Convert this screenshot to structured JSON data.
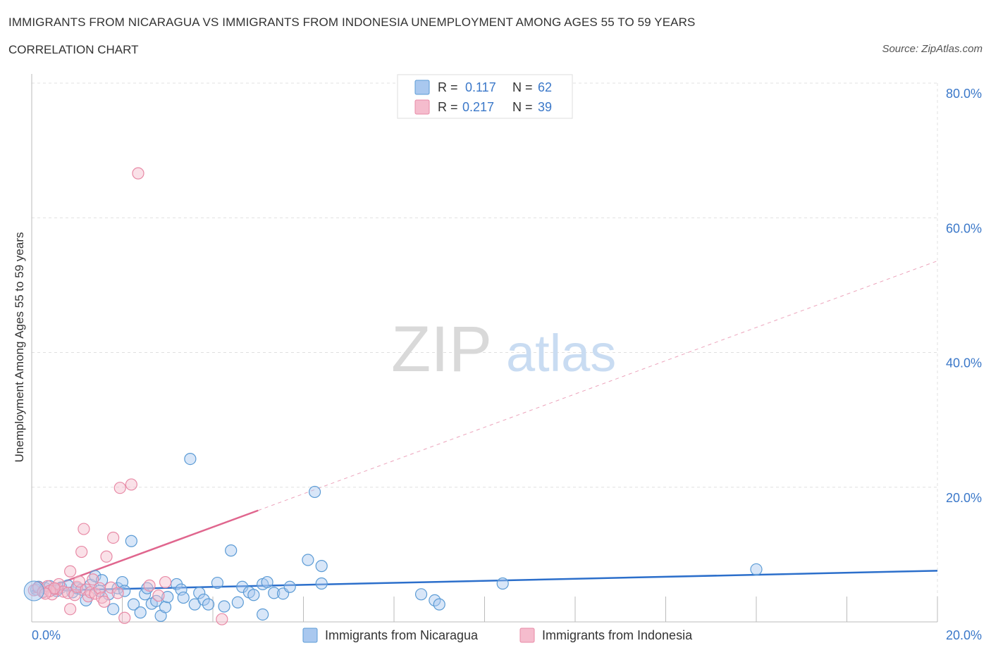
{
  "header": {
    "title": "IMMIGRANTS FROM NICARAGUA VS IMMIGRANTS FROM INDONESIA UNEMPLOYMENT AMONG AGES 55 TO 59 YEARS",
    "subtitle": "CORRELATION CHART",
    "source": "Source: ZipAtlas.com"
  },
  "watermark": {
    "zip": "ZIP",
    "atlas": "atlas"
  },
  "legend_box": {
    "rows": [
      {
        "r_label": "R =",
        "r_value": "0.117",
        "n_label": "N =",
        "n_value": "62"
      },
      {
        "r_label": "R =",
        "r_value": "0.217",
        "n_label": "N =",
        "n_value": "39"
      }
    ]
  },
  "colors": {
    "blue": "#5b9bd5",
    "blue_fill": "#a9c8ef",
    "blue_line": "#2c6fcb",
    "pink": "#e88aa6",
    "pink_fill": "#f5bccd",
    "pink_line": "#e0668e",
    "axis_label": "#3b78c9",
    "grid": "#e0e0e0"
  },
  "chart_data": {
    "type": "scatter",
    "title": "IMMIGRANTS FROM NICARAGUA VS IMMIGRANTS FROM INDONESIA UNEMPLOYMENT AMONG AGES 55 TO 59 YEARS",
    "xlabel": "",
    "ylabel": "Unemployment Among Ages 55 to 59 years",
    "xlim": [
      0,
      20
    ],
    "ylim": [
      0,
      80
    ],
    "x_tick_labels": [
      "0.0%",
      "20.0%"
    ],
    "y_ticks": [
      20,
      40,
      60,
      80
    ],
    "y_tick_labels": [
      "20.0%",
      "40.0%",
      "60.0%",
      "80.0%"
    ],
    "grid": true,
    "legend_position": "bottom-center",
    "series": [
      {
        "name": "Immigrants from Nicaragua",
        "color": "blue",
        "R": 0.117,
        "N": 62,
        "trend": {
          "x0": 0,
          "y0": 4.6,
          "x1": 20,
          "y1": 7.6,
          "dashed_from": null
        },
        "points": [
          [
            0.1,
            4.8
          ],
          [
            0.15,
            5.2
          ],
          [
            0.25,
            4.5
          ],
          [
            0.3,
            5.0
          ],
          [
            0.4,
            5.3
          ],
          [
            0.5,
            4.9
          ],
          [
            0.55,
            4.6
          ],
          [
            0.65,
            5.1
          ],
          [
            0.8,
            5.4
          ],
          [
            0.9,
            4.4
          ],
          [
            1.0,
            5.0
          ],
          [
            1.1,
            4.8
          ],
          [
            1.2,
            3.2
          ],
          [
            1.3,
            5.5
          ],
          [
            1.4,
            6.8
          ],
          [
            1.5,
            4.6
          ],
          [
            1.55,
            6.2
          ],
          [
            1.7,
            4.1
          ],
          [
            1.8,
            1.9
          ],
          [
            1.9,
            5.0
          ],
          [
            2.0,
            5.9
          ],
          [
            2.05,
            4.6
          ],
          [
            2.2,
            12.0
          ],
          [
            2.25,
            2.6
          ],
          [
            2.4,
            1.4
          ],
          [
            2.5,
            4.1
          ],
          [
            2.55,
            5.0
          ],
          [
            2.65,
            2.7
          ],
          [
            2.75,
            3.1
          ],
          [
            2.85,
            0.9
          ],
          [
            2.95,
            2.2
          ],
          [
            3.0,
            3.7
          ],
          [
            3.2,
            5.6
          ],
          [
            3.3,
            4.8
          ],
          [
            3.35,
            3.6
          ],
          [
            3.5,
            24.2
          ],
          [
            3.6,
            2.6
          ],
          [
            3.7,
            4.3
          ],
          [
            3.8,
            3.3
          ],
          [
            3.9,
            2.6
          ],
          [
            4.1,
            5.8
          ],
          [
            4.25,
            2.3
          ],
          [
            4.4,
            10.6
          ],
          [
            4.55,
            2.9
          ],
          [
            4.65,
            5.2
          ],
          [
            4.8,
            4.4
          ],
          [
            4.9,
            4.0
          ],
          [
            5.1,
            5.6
          ],
          [
            5.2,
            5.9
          ],
          [
            5.35,
            4.3
          ],
          [
            5.55,
            4.2
          ],
          [
            5.7,
            5.2
          ],
          [
            6.1,
            9.2
          ],
          [
            6.25,
            19.3
          ],
          [
            6.4,
            8.3
          ],
          [
            6.4,
            5.7
          ],
          [
            8.6,
            4.1
          ],
          [
            8.9,
            3.2
          ],
          [
            9.0,
            2.6
          ],
          [
            10.4,
            5.7
          ],
          [
            16.0,
            7.8
          ],
          [
            5.1,
            1.1
          ]
        ]
      },
      {
        "name": "Immigrants from Indonesia",
        "color": "pink",
        "R": 0.217,
        "N": 39,
        "trend": {
          "x0": 0,
          "y0": 4.2,
          "x1": 20,
          "y1": 53.6,
          "dashed_from": 5.0
        },
        "points": [
          [
            0.05,
            4.7
          ],
          [
            0.15,
            5.1
          ],
          [
            0.25,
            4.4
          ],
          [
            0.35,
            5.3
          ],
          [
            0.45,
            4.1
          ],
          [
            0.55,
            4.9
          ],
          [
            0.6,
            5.6
          ],
          [
            0.7,
            4.5
          ],
          [
            0.8,
            4.3
          ],
          [
            0.85,
            1.9
          ],
          [
            0.85,
            7.5
          ],
          [
            0.95,
            4.0
          ],
          [
            1.0,
            5.2
          ],
          [
            1.05,
            6.0
          ],
          [
            1.1,
            10.4
          ],
          [
            1.15,
            13.8
          ],
          [
            1.2,
            4.8
          ],
          [
            1.25,
            3.8
          ],
          [
            1.3,
            4.4
          ],
          [
            1.35,
            6.3
          ],
          [
            1.4,
            4.2
          ],
          [
            1.5,
            5.0
          ],
          [
            1.55,
            3.6
          ],
          [
            1.6,
            3.0
          ],
          [
            1.65,
            9.7
          ],
          [
            1.75,
            5.1
          ],
          [
            1.8,
            12.5
          ],
          [
            1.95,
            19.9
          ],
          [
            2.05,
            0.6
          ],
          [
            2.2,
            20.4
          ],
          [
            2.35,
            66.6
          ],
          [
            2.8,
            3.9
          ],
          [
            2.95,
            5.9
          ],
          [
            4.2,
            0.4
          ],
          [
            0.4,
            4.6
          ],
          [
            0.5,
            5.0
          ],
          [
            0.3,
            4.2
          ],
          [
            1.9,
            4.3
          ],
          [
            2.6,
            5.4
          ]
        ]
      }
    ]
  },
  "bottom_legend": {
    "items": [
      {
        "label": "Immigrants from Nicaragua"
      },
      {
        "label": "Immigrants from Indonesia"
      }
    ]
  }
}
